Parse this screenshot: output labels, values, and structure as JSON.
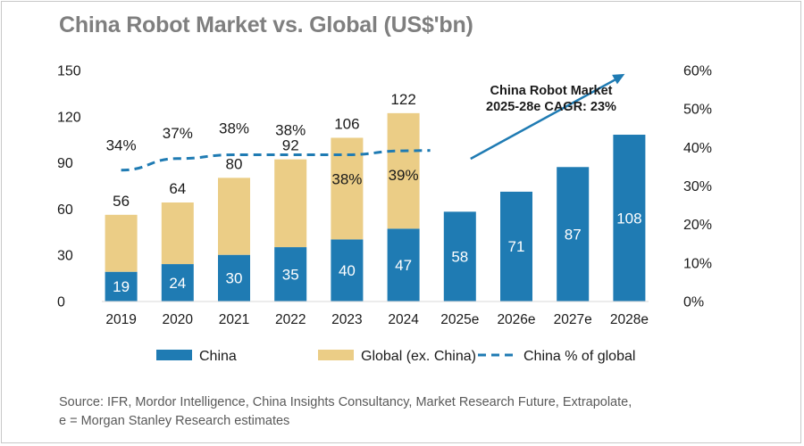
{
  "title": "China Robot Market vs. Global (US$'bn)",
  "chart_data": {
    "type": "bar",
    "stacked": true,
    "categories": [
      "2019",
      "2020",
      "2021",
      "2022",
      "2023",
      "2024",
      "2025e",
      "2026e",
      "2027e",
      "2028e"
    ],
    "series": [
      {
        "name": "China",
        "color": "#1f7bb3",
        "values": [
          19,
          24,
          30,
          35,
          40,
          47,
          58,
          71,
          87,
          108
        ]
      },
      {
        "name": "Global (ex. China)",
        "color": "#ebcd86",
        "values": [
          37,
          40,
          50,
          57,
          66,
          75,
          null,
          null,
          null,
          null
        ]
      },
      {
        "name": "China % of global",
        "type": "line",
        "axis": "right",
        "dashed": true,
        "color": "#1f7bb3",
        "values": [
          34,
          37,
          38,
          38,
          38,
          39,
          null,
          null,
          null,
          null
        ]
      }
    ],
    "total_labels": [
      "56",
      "64",
      "80",
      "92",
      "106",
      "122"
    ],
    "china_labels": [
      "19",
      "24",
      "30",
      "35",
      "40",
      "47",
      "58",
      "71",
      "87",
      "108"
    ],
    "pct_labels": [
      "34%",
      "37%",
      "38%",
      "38%",
      "38%",
      "39%"
    ],
    "y_left": {
      "min": 0,
      "max": 150,
      "ticks": [
        "0",
        "30",
        "60",
        "90",
        "120",
        "150"
      ]
    },
    "y_right": {
      "min": 0,
      "max": 60,
      "ticks": [
        "0%",
        "10%",
        "20%",
        "30%",
        "40%",
        "50%",
        "60%"
      ]
    },
    "annotation": {
      "lines": [
        "China Robot Market",
        "2025-28e CAGR: 23%"
      ],
      "arrow_from": [
        "2025e",
        30
      ],
      "arrow_to": [
        "2028e",
        59
      ]
    },
    "legend": [
      "China",
      "Global (ex. China)",
      "China % of global"
    ],
    "legend_position": "bottom",
    "grid": false
  },
  "source_lines": [
    "Source: IFR, Mordor Intelligence, China Insights Consultancy, Market Research Future, Extrapolate,",
    "e = Morgan Stanley Research estimates"
  ]
}
